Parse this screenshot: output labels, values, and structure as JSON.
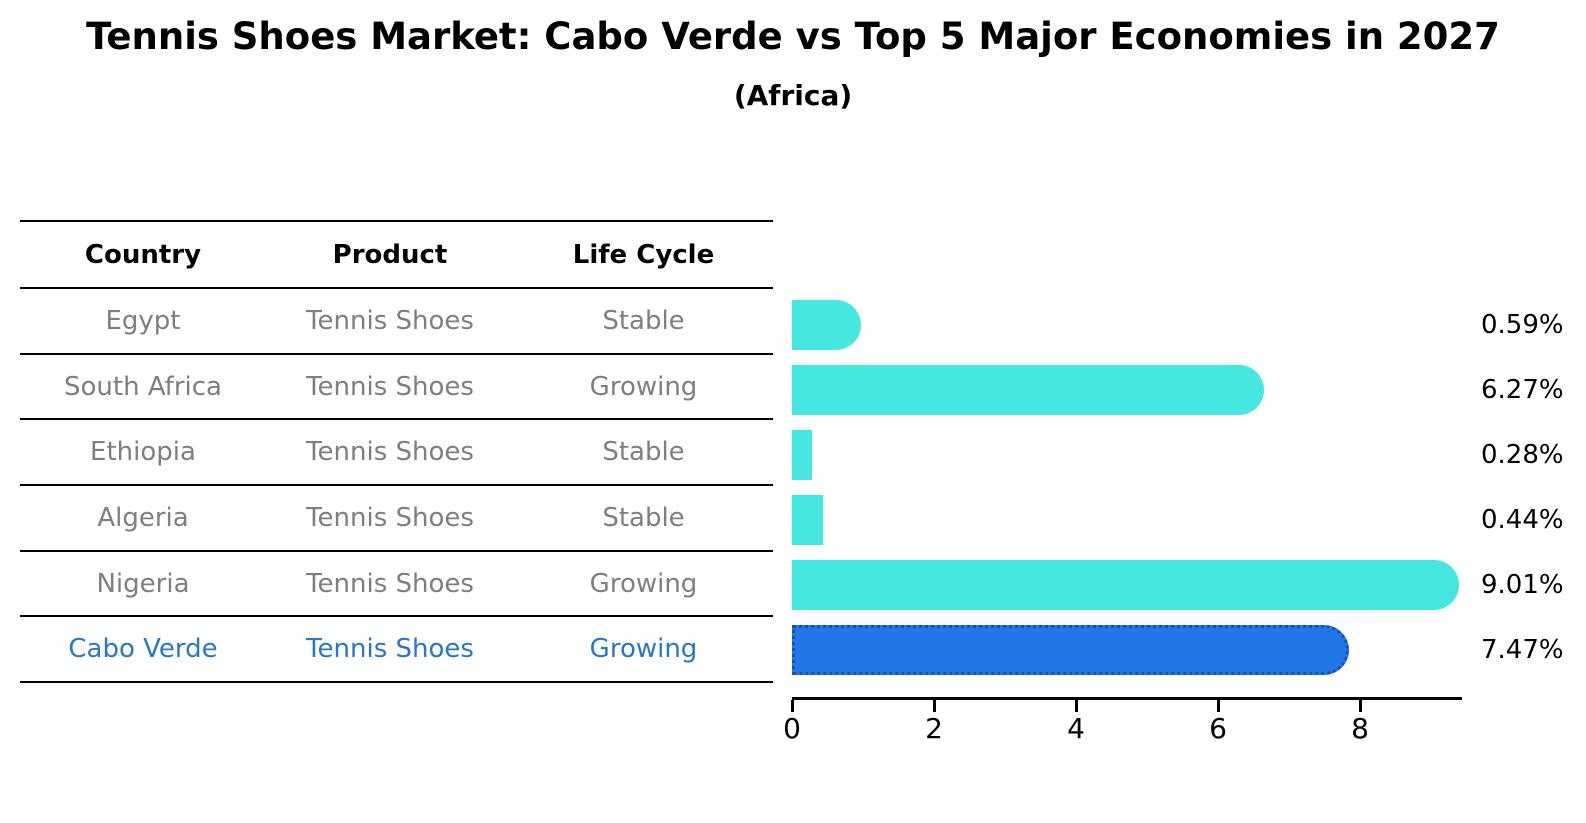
{
  "title": "Tennis Shoes Market: Cabo Verde vs Top 5 Major Economies in 2027",
  "subtitle": "(Africa)",
  "table": {
    "headers": [
      "Country",
      "Product",
      "Life Cycle"
    ],
    "rows": [
      {
        "country": "Egypt",
        "product": "Tennis Shoes",
        "life_cycle": "Stable",
        "highlight": false
      },
      {
        "country": "South Africa",
        "product": "Tennis Shoes",
        "life_cycle": "Growing",
        "highlight": false
      },
      {
        "country": "Ethiopia",
        "product": "Tennis Shoes",
        "life_cycle": "Stable",
        "highlight": false
      },
      {
        "country": "Algeria",
        "product": "Tennis Shoes",
        "life_cycle": "Stable",
        "highlight": false
      },
      {
        "country": "Nigeria",
        "product": "Tennis Shoes",
        "life_cycle": "Growing",
        "highlight": false
      },
      {
        "country": "Cabo Verde",
        "product": "Tennis Shoes",
        "life_cycle": "Growing",
        "highlight": true
      }
    ]
  },
  "chart_data": {
    "type": "bar",
    "orientation": "horizontal",
    "title": "Tennis Shoes Market: Cabo Verde vs Top 5 Major Economies in 2027",
    "subtitle": "(Africa)",
    "categories": [
      "Egypt",
      "South Africa",
      "Ethiopia",
      "Algeria",
      "Nigeria",
      "Cabo Verde"
    ],
    "values": [
      0.59,
      6.27,
      0.28,
      0.44,
      9.01,
      7.47
    ],
    "labels": [
      "0.59%",
      "6.27%",
      "0.28%",
      "0.44%",
      "9.01%",
      "7.47%"
    ],
    "x_ticks": [
      0,
      2,
      4,
      6,
      8
    ],
    "xlim": [
      0,
      9.45
    ],
    "grid": false,
    "legend": false,
    "highlight_index": 5,
    "colors": {
      "bar": "#47e7e1",
      "highlight_bar": "#2176e8",
      "highlight_border": "#1a4eb8",
      "highlight_text": "#2878c8",
      "row_text": "#7f7f7f",
      "axis": "#000000"
    }
  }
}
